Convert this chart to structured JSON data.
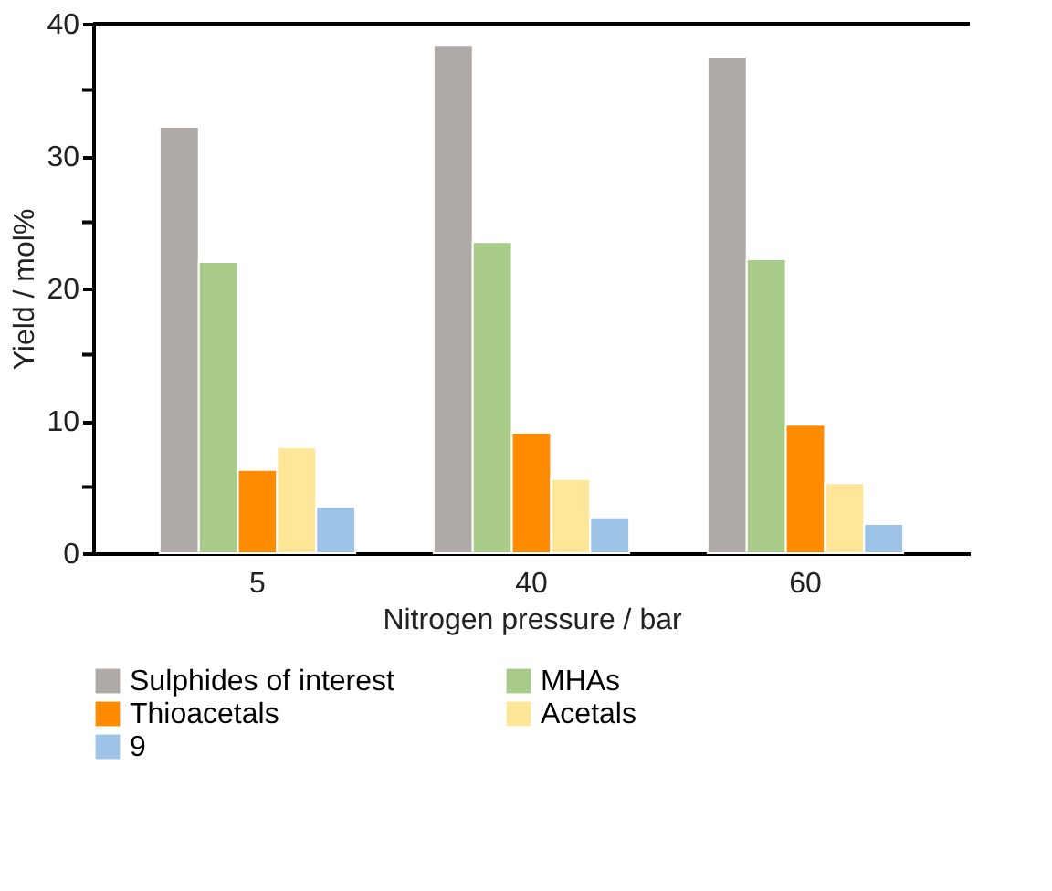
{
  "chart_data": {
    "type": "bar",
    "xlabel": "Nitrogen pressure / bar",
    "ylabel": "Yield  / mol%",
    "categories": [
      "5",
      "40",
      "60"
    ],
    "series": [
      {
        "name": "Sulphides of interest",
        "color": "#aea8a7",
        "values": [
          32.2,
          38.4,
          37.5
        ]
      },
      {
        "name": "MHAs",
        "color": "#a9cb8a",
        "values": [
          22.0,
          23.5,
          22.2
        ]
      },
      {
        "name": "Thioacetals",
        "color": "#ff8c00",
        "values": [
          6.3,
          9.1,
          9.7
        ]
      },
      {
        "name": "Acetals",
        "color": "#ffe699",
        "values": [
          8.0,
          5.6,
          5.3
        ]
      },
      {
        "name": "9",
        "color": "#9dc3e6",
        "values": [
          3.5,
          2.7,
          2.2
        ]
      }
    ],
    "ylim": [
      0,
      40
    ],
    "yticks": [
      0,
      {
        "value": 5,
        "label": null
      },
      10,
      {
        "value": 15,
        "label": null
      },
      20,
      {
        "value": 25,
        "label": null
      },
      30,
      {
        "value": 35,
        "label": null
      },
      40
    ],
    "grid": false,
    "legend": "bottom"
  }
}
